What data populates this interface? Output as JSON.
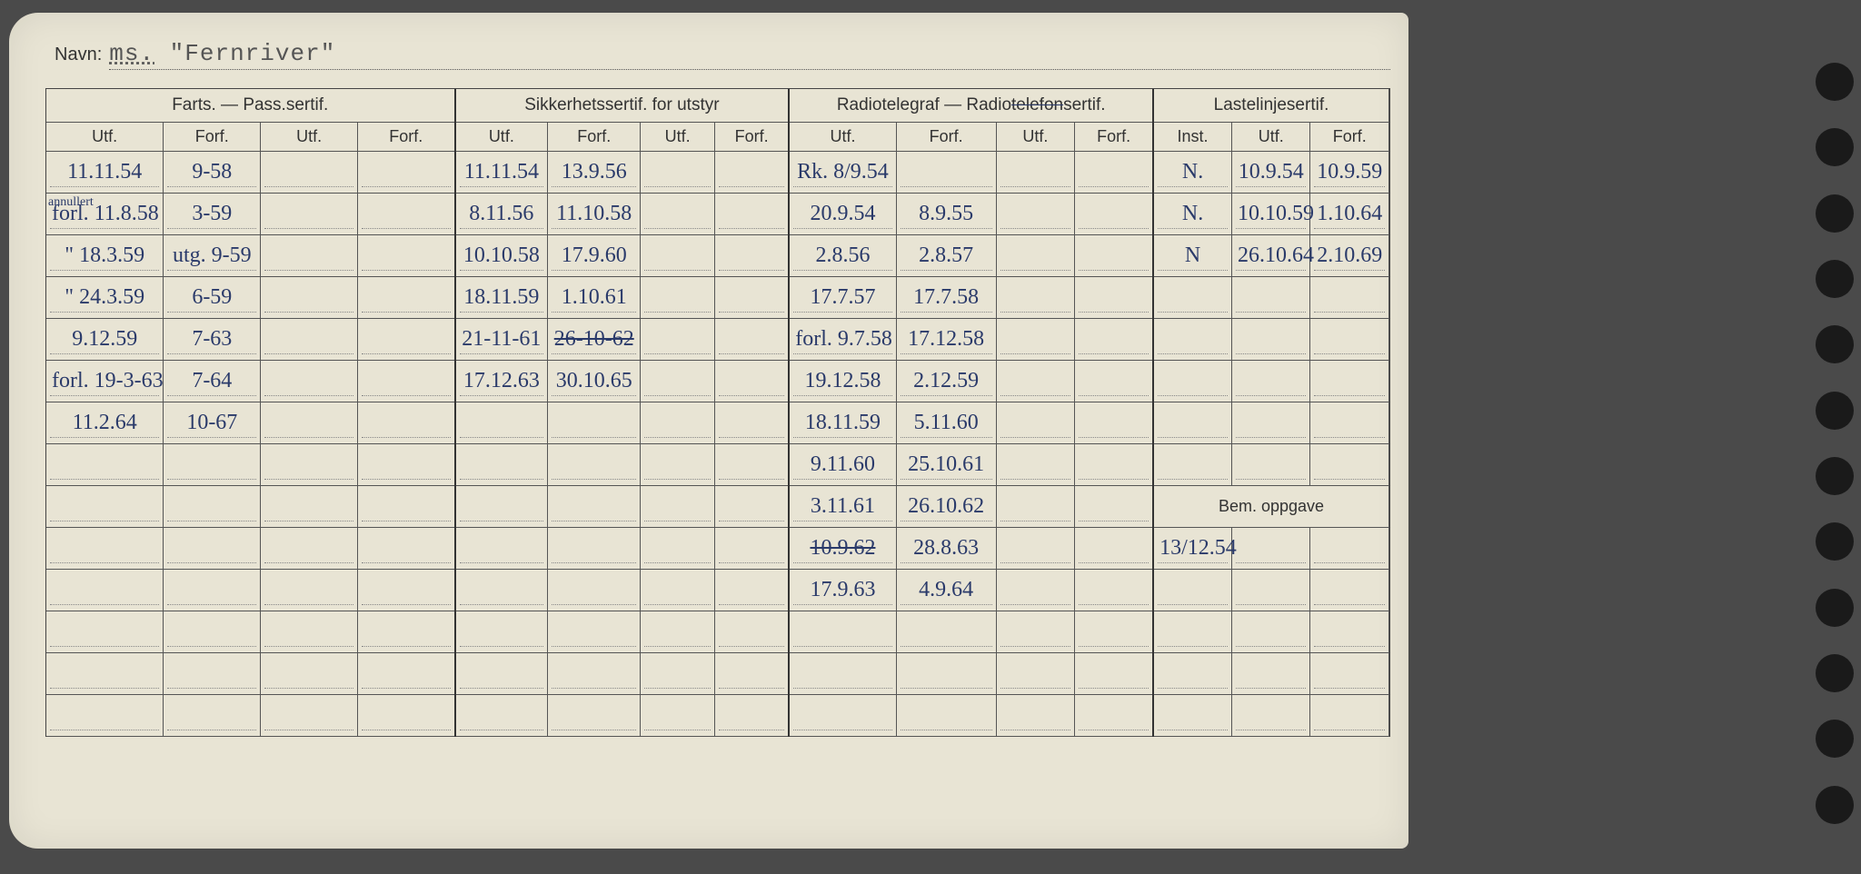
{
  "card": {
    "navn_label": "Navn:",
    "navn_prefix": "ms.",
    "navn_value": "\"Fernriver\""
  },
  "groups": [
    {
      "label": "Farts. — Pass.sertif.",
      "subs": [
        "Utf.",
        "Forf.",
        "Utf.",
        "Forf."
      ]
    },
    {
      "label": "Sikkerhetssertif. for utstyr",
      "subs": [
        "Utf.",
        "Forf.",
        "Utf.",
        "Forf."
      ]
    },
    {
      "label": "Radiotelegraf — Radiotelefonsertif.",
      "subs": [
        "Utf.",
        "Forf.",
        "Utf.",
        "Forf."
      ]
    },
    {
      "label": "Lastelinjesertif.",
      "subs": [
        "Inst.",
        "Utf.",
        "Forf."
      ]
    }
  ],
  "bem_label": "Bem. oppgave",
  "rows": [
    {
      "c": [
        "11.11.54",
        "9-58",
        "",
        "",
        "11.11.54",
        "13.9.56",
        "",
        "",
        "Rk. 8/9.54",
        "",
        "",
        "",
        "N.",
        "10.9.54",
        "10.9.59"
      ]
    },
    {
      "c": [
        "forl. 11.8.58",
        "3-59",
        "",
        "",
        "8.11.56",
        "11.10.58",
        "",
        "",
        "20.9.54",
        "8.9.55",
        "",
        "",
        "N.",
        "10.10.59",
        "1.10.64"
      ],
      "annot0": "annullert"
    },
    {
      "c": [
        "\" 18.3.59",
        "utg. 9-59",
        "",
        "",
        "10.10.58",
        "17.9.60",
        "",
        "",
        "2.8.56",
        "2.8.57",
        "",
        "",
        "N",
        "26.10.64",
        "2.10.69"
      ]
    },
    {
      "c": [
        "\" 24.3.59",
        "6-59",
        "",
        "",
        "18.11.59",
        "1.10.61",
        "",
        "",
        "17.7.57",
        "17.7.58",
        "",
        "",
        "",
        "",
        ""
      ]
    },
    {
      "c": [
        "9.12.59",
        "7-63",
        "",
        "",
        "21-11-61",
        "26-10-62",
        "",
        "",
        "forl. 9.7.58",
        "17.12.58",
        "",
        "",
        "",
        "",
        ""
      ],
      "strike5": true
    },
    {
      "c": [
        "forl. 19-3-63",
        "7-64",
        "",
        "",
        "17.12.63",
        "30.10.65",
        "",
        "",
        "19.12.58",
        "2.12.59",
        "",
        "",
        "",
        "",
        ""
      ]
    },
    {
      "c": [
        "11.2.64",
        "10-67",
        "",
        "",
        "",
        "",
        "",
        "",
        "18.11.59",
        "5.11.60",
        "",
        "",
        "",
        "",
        ""
      ]
    },
    {
      "c": [
        "",
        "",
        "",
        "",
        "",
        "",
        "",
        "",
        "9.11.60",
        "25.10.61",
        "",
        "",
        "",
        "",
        ""
      ]
    },
    {
      "c": [
        "",
        "",
        "",
        "",
        "",
        "",
        "",
        "",
        "3.11.61",
        "26.10.62",
        "",
        "",
        "__BEM__",
        "",
        ""
      ]
    },
    {
      "c": [
        "",
        "",
        "",
        "",
        "",
        "",
        "",
        "",
        "10.9.62",
        "28.8.63",
        "",
        "",
        "13/12.54",
        "",
        ""
      ],
      "strike8": true
    },
    {
      "c": [
        "",
        "",
        "",
        "",
        "",
        "",
        "",
        "",
        "17.9.63",
        "4.9.64",
        "",
        "",
        "",
        "",
        ""
      ]
    },
    {
      "c": [
        "",
        "",
        "",
        "",
        "",
        "",
        "",
        "",
        "",
        "",
        "",
        "",
        "",
        "",
        ""
      ]
    },
    {
      "c": [
        "",
        "",
        "",
        "",
        "",
        "",
        "",
        "",
        "",
        "",
        "",
        "",
        "",
        "",
        ""
      ]
    },
    {
      "c": [
        "",
        "",
        "",
        "",
        "",
        "",
        "",
        "",
        "",
        "",
        "",
        "",
        "",
        "",
        ""
      ]
    }
  ],
  "colors": {
    "ink": "#2a3a6a",
    "paper": "#e8e4d4",
    "line": "#555"
  },
  "col_widths_pct": [
    8.2,
    6.8,
    6.8,
    6.8,
    6.5,
    6.5,
    5.2,
    5.2,
    7.5,
    7.0,
    5.5,
    5.5,
    5.5,
    5.5,
    5.5
  ]
}
